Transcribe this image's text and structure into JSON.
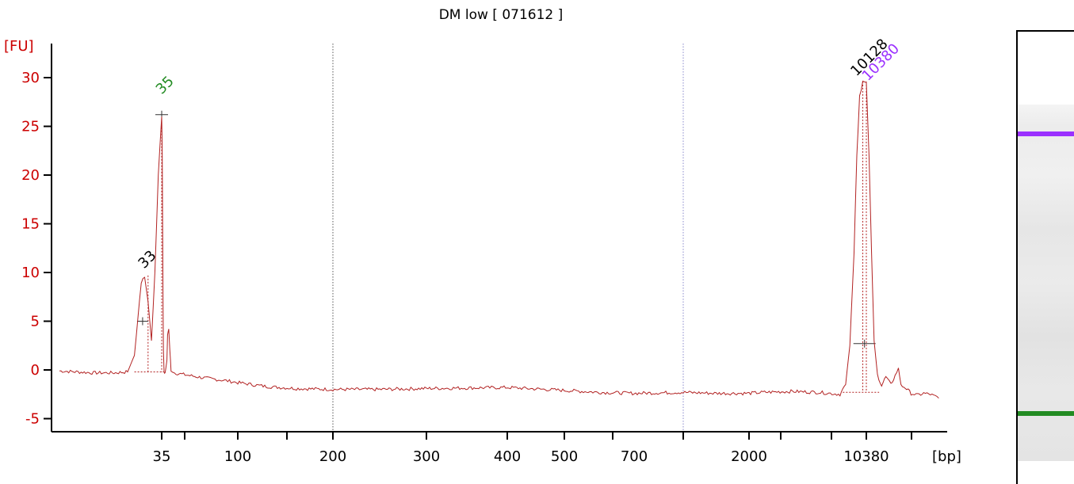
{
  "chart_data": {
    "type": "line",
    "title": "DM low  [ 071612 ]",
    "ylabel": "[FU]",
    "xlabel": "[bp]",
    "ylim": [
      -6.5,
      33.5
    ],
    "yticks": [
      -5,
      0,
      5,
      10,
      15,
      20,
      25,
      30
    ],
    "xtick_labels": [
      "35",
      "100",
      "200",
      "300",
      "400",
      "500",
      "700",
      "2000",
      "10380"
    ],
    "dotted_guides": [
      200,
      1000
    ],
    "series": [
      {
        "color": "#b22222",
        "points": [
          [
            20,
            -0.1
          ],
          [
            25,
            -0.3
          ],
          [
            28,
            -0.3
          ],
          [
            30,
            -0.2
          ],
          [
            31,
            1.5
          ],
          [
            32,
            9.0
          ],
          [
            32.5,
            9.5
          ],
          [
            33,
            7.0
          ],
          [
            33.5,
            3.0
          ],
          [
            34,
            10.0
          ],
          [
            34.5,
            20.0
          ],
          [
            35,
            26.0
          ],
          [
            35.5,
            22.0
          ],
          [
            36,
            10.0
          ],
          [
            36.5,
            2.0
          ],
          [
            37,
            -0.2
          ],
          [
            38,
            -0.3
          ],
          [
            39.5,
            1.0
          ],
          [
            40,
            3.5
          ],
          [
            41,
            4.2
          ],
          [
            42,
            2.0
          ],
          [
            43,
            0.0
          ],
          [
            46,
            -0.3
          ],
          [
            55,
            -0.5
          ],
          [
            70,
            -0.8
          ],
          [
            90,
            -1.1
          ],
          [
            100,
            -1.3
          ],
          [
            130,
            -1.7
          ],
          [
            160,
            -1.9
          ],
          [
            200,
            -2.0
          ],
          [
            250,
            -2.0
          ],
          [
            300,
            -1.9
          ],
          [
            400,
            -1.8
          ],
          [
            500,
            -2.1
          ],
          [
            600,
            -2.3
          ],
          [
            700,
            -2.4
          ],
          [
            1000,
            -2.3
          ],
          [
            1500,
            -2.4
          ],
          [
            2000,
            -2.4
          ],
          [
            3000,
            -2.3
          ],
          [
            5000,
            -2.2
          ],
          [
            7000,
            -2.3
          ],
          [
            8500,
            -2.5
          ],
          [
            8900,
            -1.5
          ],
          [
            9200,
            2.5
          ],
          [
            9500,
            12.0
          ],
          [
            9700,
            22.0
          ],
          [
            9900,
            28.0
          ],
          [
            10128,
            29.5
          ],
          [
            10380,
            29.5
          ],
          [
            10700,
            22.0
          ],
          [
            11000,
            12.0
          ],
          [
            11300,
            3.0
          ],
          [
            11700,
            -0.5
          ],
          [
            12200,
            -1.6
          ],
          [
            12700,
            -0.7
          ],
          [
            13300,
            -1.5
          ],
          [
            13800,
            -0.6
          ],
          [
            14200,
            0.2
          ],
          [
            14500,
            -1.6
          ],
          [
            15000,
            -1.8
          ],
          [
            15700,
            -2.4
          ],
          [
            16500,
            -2.6
          ],
          [
            17200,
            -2.4
          ],
          [
            18000,
            -2.5
          ],
          [
            19000,
            -2.9
          ]
        ]
      }
    ],
    "peaks": [
      {
        "label": "35",
        "color": "#228b22",
        "x": 35,
        "y": 26.2,
        "baseline": -0.2
      },
      {
        "label": "33",
        "color": "#000000",
        "x": 33,
        "y": 9.7,
        "baseline": -0.2
      },
      {
        "label": "10128",
        "color": "#000000",
        "x": 10128,
        "y": 29.6,
        "baseline": -2.3
      },
      {
        "label": "10380",
        "color": "#9b30ff",
        "x": 10380,
        "y": 29.6,
        "baseline": -2.3
      }
    ],
    "gel": {
      "bands": [
        {
          "name": "upper-marker",
          "color": "#9b30ff"
        },
        {
          "name": "lower-marker",
          "color": "#228b22"
        }
      ]
    }
  }
}
